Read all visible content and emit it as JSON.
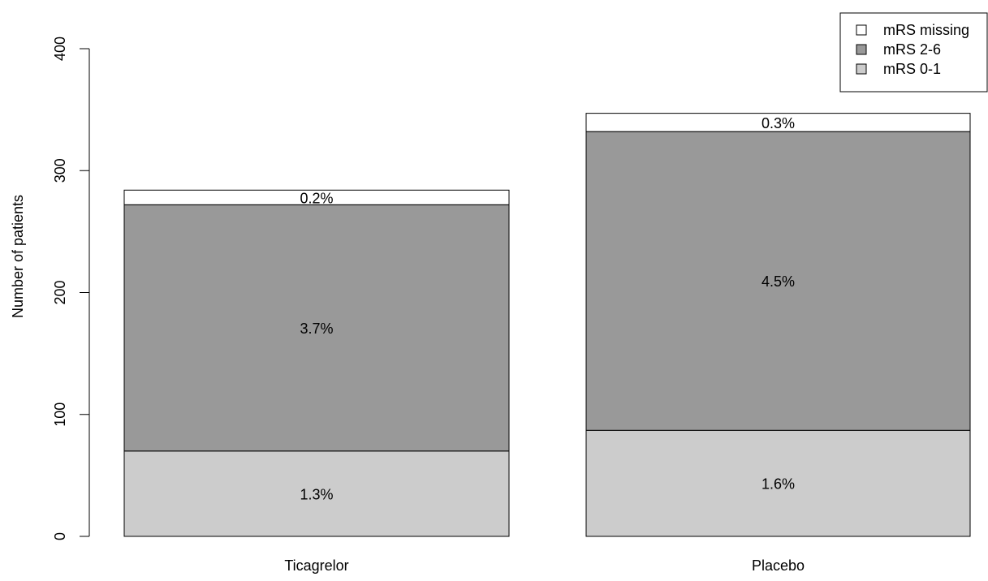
{
  "chart_data": {
    "type": "bar",
    "stacked": true,
    "title": "",
    "xlabel": "",
    "ylabel": "Number of patients",
    "ylim": [
      0,
      400
    ],
    "yticks": [
      "0",
      "100",
      "200",
      "300",
      "400"
    ],
    "categories": [
      "Ticagrelor",
      "Placebo"
    ],
    "series": [
      {
        "name": "mRS 0-1",
        "color": "#cccccc",
        "values": [
          70,
          87
        ],
        "labels": [
          "1.3%",
          "1.6%"
        ]
      },
      {
        "name": "mRS 2-6",
        "color": "#999999",
        "values": [
          202,
          245
        ],
        "labels": [
          "3.7%",
          "4.5%"
        ]
      },
      {
        "name": "mRS missing",
        "color": "#ffffff",
        "values": [
          12,
          15
        ],
        "labels": [
          "0.2%",
          "0.3%"
        ]
      }
    ],
    "legend": {
      "position": "top-right",
      "order": [
        "mRS missing",
        "mRS 2-6",
        "mRS 0-1"
      ]
    }
  }
}
